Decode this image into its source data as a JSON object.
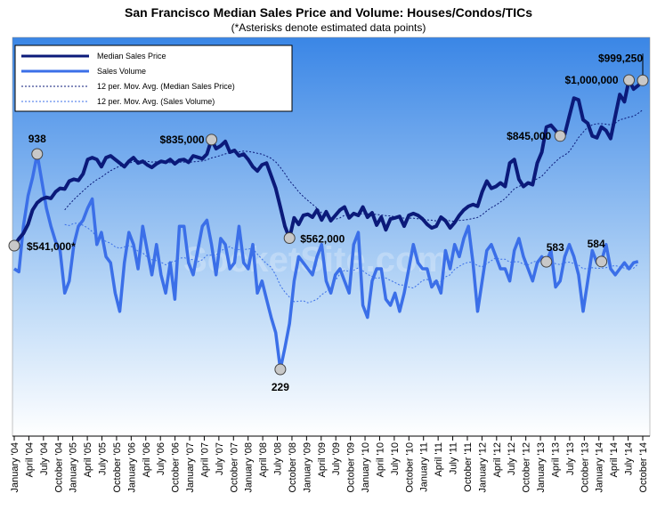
{
  "chart_data": {
    "type": "line",
    "title": "San Francisco Median Sales Price and Volume: Houses/Condos/TICs",
    "subtitle": "(*Asterisks denote estimated data points)",
    "watermark": "SocketSite.com",
    "x_tick_labels": [
      "January '04",
      "April '04",
      "July '04",
      "October '04",
      "January '05",
      "April '05",
      "July '05",
      "October '05",
      "January '06",
      "April '06",
      "July '06",
      "October '06",
      "January '07",
      "April '07",
      "July '07",
      "October '07",
      "January '08",
      "April '08",
      "July '08",
      "October '08",
      "January '09",
      "April '09",
      "July '09",
      "October '09",
      "January '10",
      "April '10",
      "July '10",
      "October '10",
      "January '11",
      "April '11",
      "July '11",
      "October '11",
      "January '12",
      "April '12",
      "July '12",
      "October '12",
      "January '13",
      "April '13",
      "July '13",
      "October '13",
      "January '14",
      "April '14",
      "July '14",
      "October '14"
    ],
    "legend": {
      "placement": "top-left",
      "entries": [
        "Median Sales Price",
        "Sales Volume",
        "12 per. Mov. Avg. (Median Sales Price)",
        "12 per. Mov. Avg. (Sales Volume)"
      ]
    },
    "colors": {
      "price": "#0b1a7a",
      "volume": "#3b6fe8",
      "price_avg": "#0b1a7a",
      "volume_avg": "#3b6fe8",
      "bg_top": "#3a86e6",
      "bg_bottom": "#ffffff",
      "marker": "#c8c8c8"
    },
    "series": [
      {
        "name": "Median Sales Price",
        "values": [
          541000,
          560000,
          575000,
          600000,
          640000,
          660000,
          670000,
          675000,
          672000,
          690000,
          700000,
          698000,
          720000,
          725000,
          722000,
          740000,
          780000,
          785000,
          780000,
          760000,
          785000,
          790000,
          780000,
          770000,
          760000,
          775000,
          785000,
          770000,
          775000,
          765000,
          758000,
          768000,
          775000,
          772000,
          780000,
          768000,
          778000,
          780000,
          772000,
          790000,
          786000,
          782000,
          795000,
          835000,
          810000,
          818000,
          830000,
          800000,
          805000,
          790000,
          795000,
          780000,
          760000,
          748000,
          765000,
          770000,
          735000,
          700000,
          648000,
          595000,
          562000,
          618000,
          600000,
          625000,
          628000,
          620000,
          640000,
          612000,
          635000,
          610000,
          625000,
          640000,
          648000,
          618000,
          630000,
          625000,
          648000,
          620000,
          632000,
          598000,
          620000,
          585000,
          615000,
          618000,
          622000,
          595000,
          625000,
          630000,
          625000,
          615000,
          600000,
          590000,
          595000,
          620000,
          610000,
          590000,
          605000,
          625000,
          640000,
          650000,
          655000,
          650000,
          690000,
          720000,
          700000,
          705000,
          715000,
          705000,
          770000,
          780000,
          725000,
          705000,
          715000,
          710000,
          770000,
          800000,
          870000,
          875000,
          860000,
          845000,
          850000,
          900000,
          950000,
          945000,
          890000,
          880000,
          845000,
          840000,
          870000,
          860000,
          838000,
          900000,
          960000,
          940000,
          1000000,
          975000,
          985000,
          999250
        ]
      },
      {
        "name": "Sales Volume",
        "values": [
          560,
          550,
          700,
          800,
          860,
          938,
          850,
          760,
          700,
          650,
          620,
          480,
          520,
          640,
          700,
          720,
          760,
          790,
          640,
          680,
          600,
          580,
          480,
          420,
          580,
          680,
          640,
          560,
          700,
          620,
          540,
          640,
          540,
          480,
          580,
          460,
          700,
          700,
          580,
          540,
          620,
          700,
          720,
          640,
          540,
          660,
          640,
          560,
          580,
          700,
          580,
          560,
          640,
          480,
          520,
          460,
          400,
          350,
          229,
          300,
          380,
          520,
          600,
          580,
          560,
          540,
          600,
          640,
          520,
          480,
          540,
          560,
          520,
          480,
          640,
          680,
          440,
          400,
          520,
          560,
          560,
          460,
          440,
          480,
          420,
          480,
          560,
          640,
          580,
          560,
          560,
          500,
          520,
          480,
          620,
          560,
          640,
          600,
          660,
          700,
          580,
          420,
          520,
          620,
          640,
          600,
          560,
          560,
          520,
          620,
          660,
          600,
          560,
          520,
          580,
          600,
          583,
          620,
          500,
          520,
          600,
          640,
          600,
          540,
          420,
          520,
          620,
          580,
          584,
          640,
          560,
          540,
          560,
          580,
          560,
          580,
          584
        ]
      }
    ],
    "annotations": [
      {
        "series": "Median Sales Price",
        "label": "$541,000*"
      },
      {
        "series": "Median Sales Price",
        "label": "$835,000"
      },
      {
        "series": "Median Sales Price",
        "label": "$562,000"
      },
      {
        "series": "Median Sales Price",
        "label": "$845,000"
      },
      {
        "series": "Median Sales Price",
        "label": "$1,000,000"
      },
      {
        "series": "Median Sales Price",
        "label": "$999,250"
      },
      {
        "series": "Sales Volume",
        "label": "938"
      },
      {
        "series": "Sales Volume",
        "label": "229"
      },
      {
        "series": "Sales Volume",
        "label": "583"
      },
      {
        "series": "Sales Volume",
        "label": "584"
      }
    ]
  }
}
